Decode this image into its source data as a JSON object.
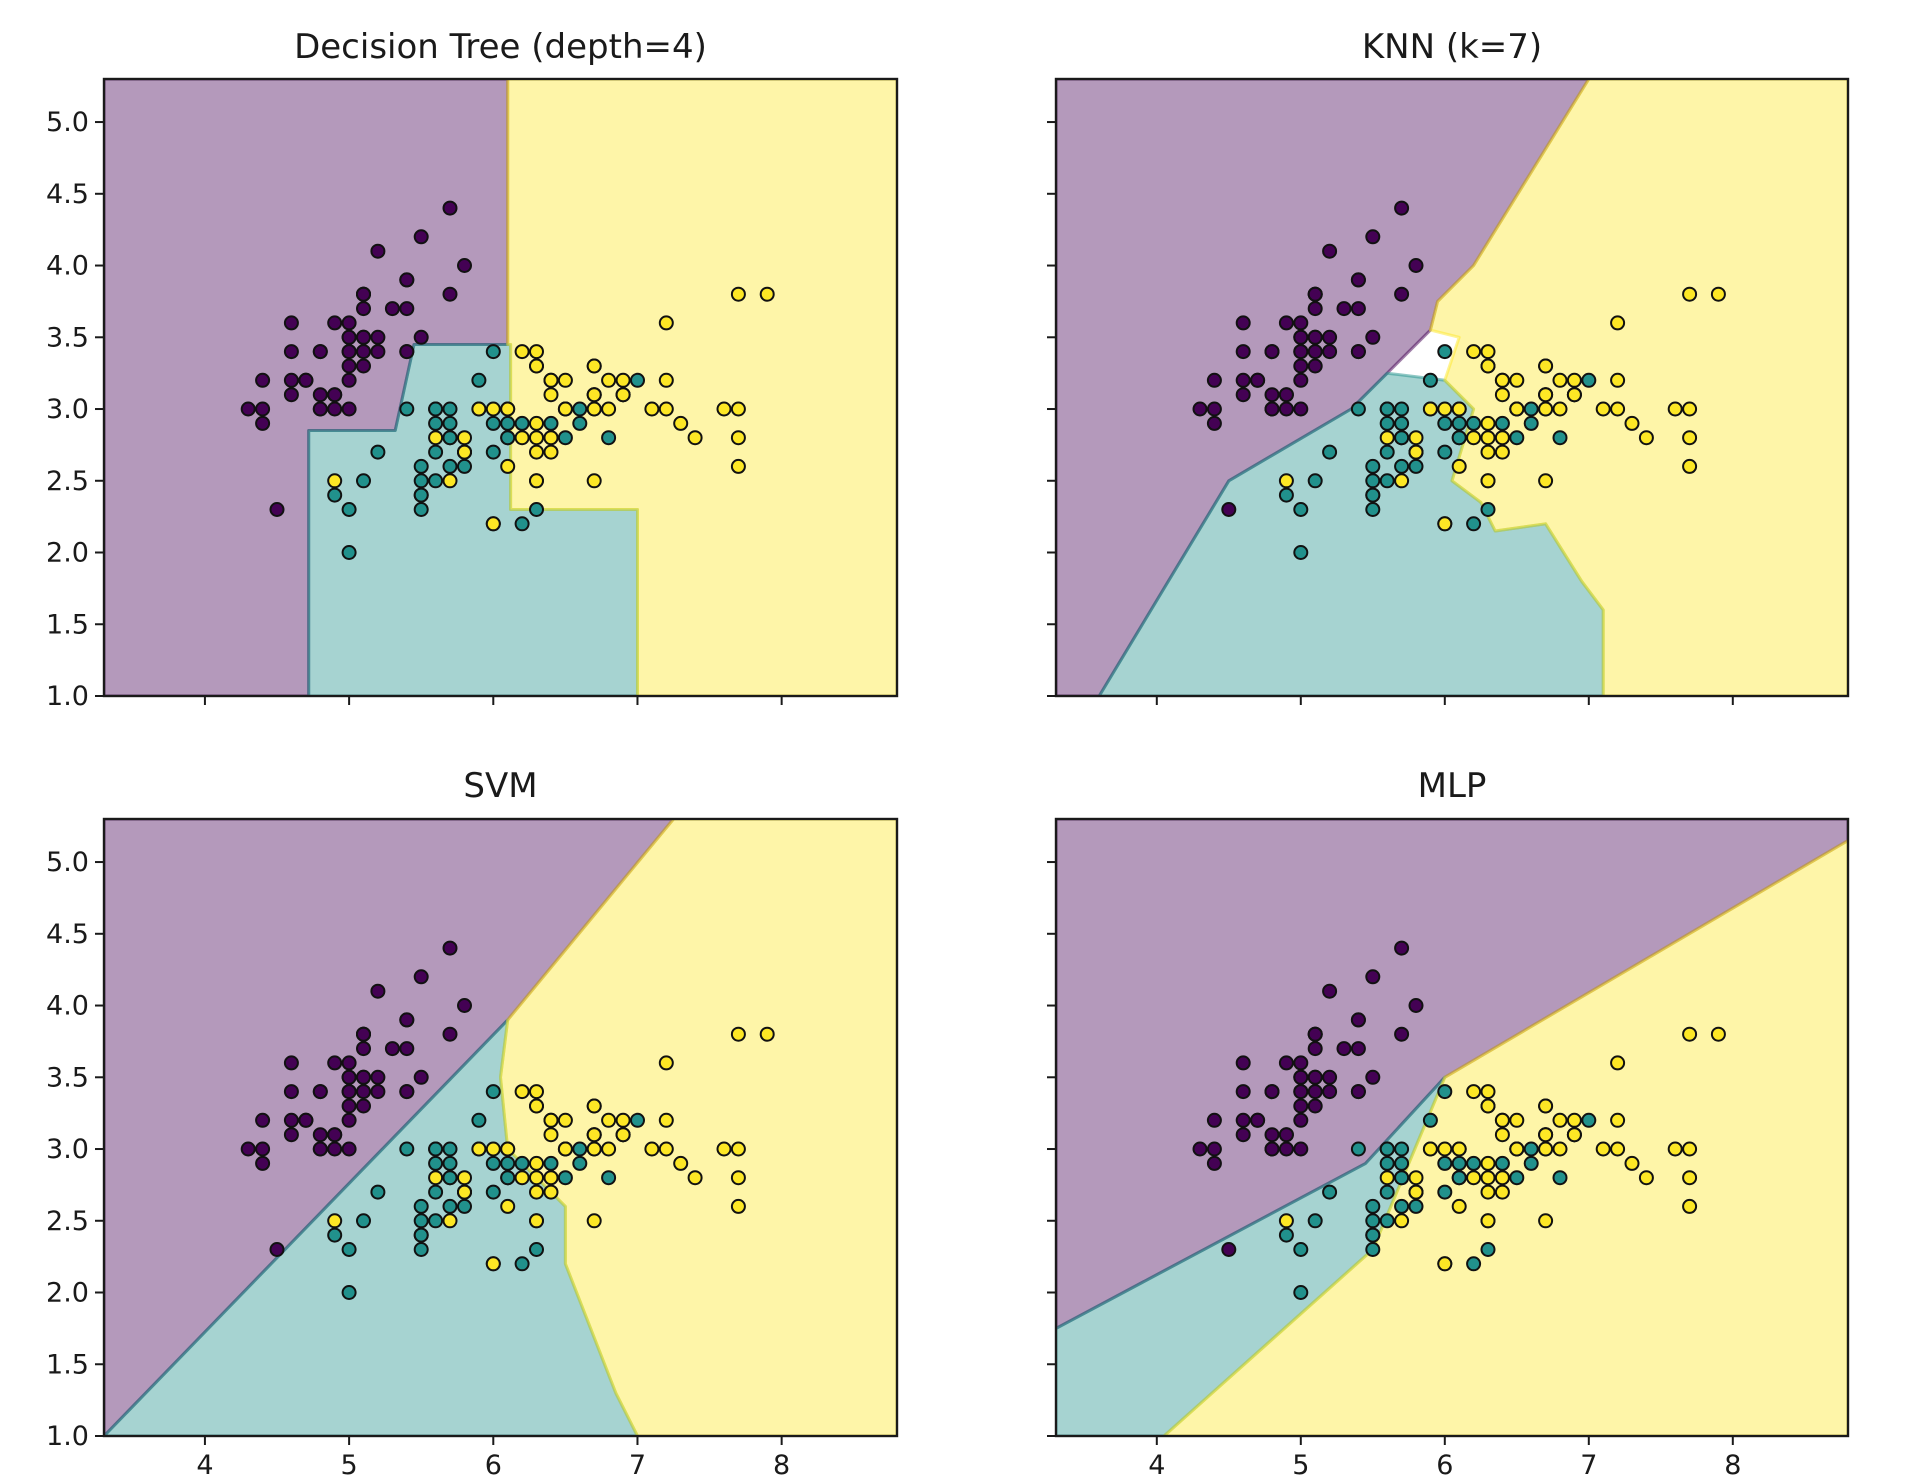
{
  "chart_data": {
    "type": "scatter",
    "layout": "2x2 grid of decision-boundary plots, shared axes",
    "class_colors": [
      "#440154",
      "#21918c",
      "#fde725"
    ],
    "region_opacity": 0.4,
    "xlim": [
      3.3,
      8.8
    ],
    "ylim": [
      1.0,
      5.3
    ],
    "xticks": [
      4,
      5,
      6,
      7,
      8
    ],
    "yticks": [
      1.0,
      1.5,
      2.0,
      2.5,
      3.0,
      3.5,
      4.0,
      4.5,
      5.0
    ],
    "xtick_labels": [
      "4",
      "5",
      "6",
      "7",
      "8"
    ],
    "ytick_labels": [
      "1.0",
      "1.5",
      "2.0",
      "2.5",
      "3.0",
      "3.5",
      "4.0",
      "4.5",
      "5.0"
    ],
    "panels": [
      {
        "title": "Decision Tree (depth=4)",
        "regions": [
          {
            "class": 0,
            "polygon": [
              [
                3.3,
                1.0
              ],
              [
                4.72,
                1.0
              ],
              [
                4.72,
                2.85
              ],
              [
                5.32,
                2.85
              ],
              [
                5.45,
                3.45
              ],
              [
                6.1,
                3.45
              ],
              [
                6.1,
                5.3
              ],
              [
                3.3,
                5.3
              ]
            ]
          },
          {
            "class": 1,
            "polygon": [
              [
                4.72,
                1.0
              ],
              [
                7.0,
                1.0
              ],
              [
                7.0,
                2.3
              ],
              [
                6.12,
                2.3
              ],
              [
                6.12,
                3.45
              ],
              [
                5.45,
                3.45
              ],
              [
                5.32,
                2.85
              ],
              [
                4.72,
                2.85
              ]
            ]
          },
          {
            "class": 2,
            "polygon": [
              [
                7.0,
                1.0
              ],
              [
                8.8,
                1.0
              ],
              [
                8.8,
                5.3
              ],
              [
                6.1,
                5.3
              ],
              [
                6.1,
                3.45
              ],
              [
                6.12,
                3.45
              ],
              [
                6.12,
                2.3
              ],
              [
                7.0,
                2.3
              ]
            ]
          }
        ]
      },
      {
        "title": "KNN (k=7)",
        "regions": [
          {
            "class": 0,
            "polygon": [
              [
                3.3,
                1.0
              ],
              [
                3.6,
                1.0
              ],
              [
                4.5,
                2.5
              ],
              [
                5.35,
                3.0
              ],
              [
                5.6,
                3.25
              ],
              [
                5.9,
                3.55
              ],
              [
                5.95,
                3.75
              ],
              [
                6.2,
                4.0
              ],
              [
                7.0,
                5.3
              ],
              [
                3.3,
                5.3
              ]
            ]
          },
          {
            "class": 1,
            "polygon": [
              [
                3.6,
                1.0
              ],
              [
                7.1,
                1.0
              ],
              [
                7.1,
                1.6
              ],
              [
                6.95,
                1.8
              ],
              [
                6.7,
                2.2
              ],
              [
                6.35,
                2.15
              ],
              [
                6.25,
                2.35
              ],
              [
                6.05,
                2.5
              ],
              [
                6.2,
                3.0
              ],
              [
                6.0,
                3.2
              ],
              [
                5.6,
                3.25
              ],
              [
                5.35,
                3.0
              ],
              [
                4.5,
                2.5
              ]
            ]
          },
          {
            "class": 2,
            "polygon": [
              [
                7.1,
                1.0
              ],
              [
                8.8,
                1.0
              ],
              [
                8.8,
                5.3
              ],
              [
                7.0,
                5.3
              ],
              [
                6.2,
                4.0
              ],
              [
                5.95,
                3.75
              ],
              [
                5.9,
                3.55
              ],
              [
                6.1,
                3.5
              ],
              [
                6.0,
                3.2
              ],
              [
                6.2,
                3.0
              ],
              [
                6.05,
                2.5
              ],
              [
                6.25,
                2.35
              ],
              [
                6.35,
                2.15
              ],
              [
                6.7,
                2.2
              ],
              [
                6.95,
                1.8
              ],
              [
                7.1,
                1.6
              ]
            ]
          }
        ]
      },
      {
        "title": "SVM",
        "regions": [
          {
            "class": 0,
            "polygon": [
              [
                3.3,
                1.0
              ],
              [
                6.1,
                3.9
              ],
              [
                7.25,
                5.3
              ],
              [
                3.3,
                5.3
              ]
            ]
          },
          {
            "class": 1,
            "polygon": [
              [
                3.3,
                1.0
              ],
              [
                7.0,
                1.0
              ],
              [
                6.85,
                1.3
              ],
              [
                6.5,
                2.2
              ],
              [
                6.5,
                2.6
              ],
              [
                6.1,
                3.0
              ],
              [
                6.05,
                3.5
              ],
              [
                6.1,
                3.9
              ]
            ]
          },
          {
            "class": 2,
            "polygon": [
              [
                7.0,
                1.0
              ],
              [
                8.8,
                1.0
              ],
              [
                8.8,
                5.3
              ],
              [
                7.25,
                5.3
              ],
              [
                6.1,
                3.9
              ],
              [
                6.05,
                3.5
              ],
              [
                6.1,
                3.0
              ],
              [
                6.5,
                2.6
              ],
              [
                6.5,
                2.2
              ],
              [
                6.85,
                1.3
              ]
            ]
          }
        ]
      },
      {
        "title": "MLP",
        "regions": [
          {
            "class": 0,
            "polygon": [
              [
                3.3,
                1.75
              ],
              [
                5.45,
                2.9
              ],
              [
                6.0,
                3.5
              ],
              [
                8.8,
                5.15
              ],
              [
                8.8,
                5.3
              ],
              [
                3.3,
                5.3
              ]
            ]
          },
          {
            "class": 1,
            "polygon": [
              [
                3.3,
                1.0
              ],
              [
                4.05,
                1.0
              ],
              [
                5.5,
                2.3
              ],
              [
                6.0,
                3.5
              ],
              [
                5.45,
                2.9
              ],
              [
                3.3,
                1.75
              ]
            ]
          },
          {
            "class": 2,
            "polygon": [
              [
                4.05,
                1.0
              ],
              [
                8.8,
                1.0
              ],
              [
                8.8,
                5.15
              ],
              [
                6.0,
                3.5
              ],
              [
                5.5,
                2.3
              ]
            ]
          }
        ]
      }
    ],
    "points": [
      [
        5.1,
        3.5,
        0
      ],
      [
        4.9,
        3.0,
        0
      ],
      [
        4.7,
        3.2,
        0
      ],
      [
        4.6,
        3.1,
        0
      ],
      [
        5.0,
        3.6,
        0
      ],
      [
        5.4,
        3.9,
        0
      ],
      [
        4.6,
        3.4,
        0
      ],
      [
        5.0,
        3.4,
        0
      ],
      [
        4.4,
        2.9,
        0
      ],
      [
        4.9,
        3.1,
        0
      ],
      [
        5.4,
        3.7,
        0
      ],
      [
        4.8,
        3.4,
        0
      ],
      [
        4.8,
        3.0,
        0
      ],
      [
        4.3,
        3.0,
        0
      ],
      [
        5.8,
        4.0,
        0
      ],
      [
        5.7,
        4.4,
        0
      ],
      [
        5.4,
        3.9,
        0
      ],
      [
        5.1,
        3.5,
        0
      ],
      [
        5.7,
        3.8,
        0
      ],
      [
        5.1,
        3.8,
        0
      ],
      [
        5.4,
        3.4,
        0
      ],
      [
        5.1,
        3.7,
        0
      ],
      [
        4.6,
        3.6,
        0
      ],
      [
        5.1,
        3.3,
        0
      ],
      [
        4.8,
        3.4,
        0
      ],
      [
        5.0,
        3.0,
        0
      ],
      [
        5.0,
        3.4,
        0
      ],
      [
        5.2,
        3.5,
        0
      ],
      [
        5.2,
        3.4,
        0
      ],
      [
        4.7,
        3.2,
        0
      ],
      [
        4.8,
        3.1,
        0
      ],
      [
        5.4,
        3.4,
        0
      ],
      [
        5.2,
        4.1,
        0
      ],
      [
        5.5,
        4.2,
        0
      ],
      [
        4.9,
        3.1,
        0
      ],
      [
        5.0,
        3.2,
        0
      ],
      [
        5.5,
        3.5,
        0
      ],
      [
        4.9,
        3.6,
        0
      ],
      [
        4.4,
        3.0,
        0
      ],
      [
        5.1,
        3.4,
        0
      ],
      [
        5.0,
        3.5,
        0
      ],
      [
        4.5,
        2.3,
        0
      ],
      [
        4.4,
        3.2,
        0
      ],
      [
        5.0,
        3.5,
        0
      ],
      [
        5.1,
        3.8,
        0
      ],
      [
        4.8,
        3.0,
        0
      ],
      [
        5.1,
        3.8,
        0
      ],
      [
        4.6,
        3.2,
        0
      ],
      [
        5.3,
        3.7,
        0
      ],
      [
        5.0,
        3.3,
        0
      ],
      [
        7.0,
        3.2,
        1
      ],
      [
        6.4,
        3.2,
        1
      ],
      [
        6.9,
        3.1,
        1
      ],
      [
        5.5,
        2.3,
        1
      ],
      [
        6.5,
        2.8,
        1
      ],
      [
        5.7,
        2.8,
        1
      ],
      [
        6.3,
        3.3,
        1
      ],
      [
        4.9,
        2.4,
        1
      ],
      [
        6.6,
        2.9,
        1
      ],
      [
        5.2,
        2.7,
        1
      ],
      [
        5.0,
        2.0,
        1
      ],
      [
        5.9,
        3.0,
        1
      ],
      [
        6.0,
        2.2,
        1
      ],
      [
        6.1,
        2.9,
        1
      ],
      [
        5.6,
        2.9,
        1
      ],
      [
        6.7,
        3.1,
        1
      ],
      [
        5.6,
        3.0,
        1
      ],
      [
        5.8,
        2.7,
        1
      ],
      [
        6.2,
        2.2,
        1
      ],
      [
        5.6,
        2.5,
        1
      ],
      [
        5.9,
        3.2,
        1
      ],
      [
        6.1,
        2.8,
        1
      ],
      [
        6.3,
        2.5,
        1
      ],
      [
        6.1,
        2.8,
        1
      ],
      [
        6.4,
        2.9,
        1
      ],
      [
        6.6,
        3.0,
        1
      ],
      [
        6.8,
        2.8,
        1
      ],
      [
        6.7,
        3.0,
        1
      ],
      [
        6.0,
        2.9,
        1
      ],
      [
        5.7,
        2.6,
        1
      ],
      [
        5.5,
        2.4,
        1
      ],
      [
        5.5,
        2.4,
        1
      ],
      [
        5.8,
        2.7,
        1
      ],
      [
        6.0,
        2.7,
        1
      ],
      [
        5.4,
        3.0,
        1
      ],
      [
        6.0,
        3.4,
        1
      ],
      [
        6.7,
        3.1,
        1
      ],
      [
        6.3,
        2.3,
        1
      ],
      [
        5.6,
        3.0,
        1
      ],
      [
        5.5,
        2.5,
        1
      ],
      [
        5.5,
        2.6,
        1
      ],
      [
        6.1,
        3.0,
        1
      ],
      [
        5.8,
        2.6,
        1
      ],
      [
        5.0,
        2.3,
        1
      ],
      [
        5.6,
        2.7,
        1
      ],
      [
        5.7,
        3.0,
        1
      ],
      [
        5.7,
        2.9,
        1
      ],
      [
        6.2,
        2.9,
        1
      ],
      [
        5.1,
        2.5,
        1
      ],
      [
        5.7,
        2.8,
        1
      ],
      [
        6.3,
        3.3,
        2
      ],
      [
        5.8,
        2.7,
        2
      ],
      [
        7.1,
        3.0,
        2
      ],
      [
        6.3,
        2.9,
        2
      ],
      [
        6.5,
        3.0,
        2
      ],
      [
        7.6,
        3.0,
        2
      ],
      [
        4.9,
        2.5,
        2
      ],
      [
        7.3,
        2.9,
        2
      ],
      [
        6.7,
        2.5,
        2
      ],
      [
        7.2,
        3.6,
        2
      ],
      [
        6.5,
        3.2,
        2
      ],
      [
        6.4,
        2.7,
        2
      ],
      [
        6.8,
        3.0,
        2
      ],
      [
        5.7,
        2.5,
        2
      ],
      [
        5.8,
        2.8,
        2
      ],
      [
        6.4,
        3.2,
        2
      ],
      [
        6.5,
        3.0,
        2
      ],
      [
        7.7,
        3.8,
        2
      ],
      [
        7.7,
        2.6,
        2
      ],
      [
        6.0,
        2.2,
        2
      ],
      [
        6.9,
        3.2,
        2
      ],
      [
        5.6,
        2.8,
        2
      ],
      [
        7.7,
        2.8,
        2
      ],
      [
        6.3,
        2.7,
        2
      ],
      [
        6.7,
        3.3,
        2
      ],
      [
        7.2,
        3.2,
        2
      ],
      [
        6.2,
        2.8,
        2
      ],
      [
        6.1,
        3.0,
        2
      ],
      [
        6.4,
        2.8,
        2
      ],
      [
        7.2,
        3.0,
        2
      ],
      [
        7.4,
        2.8,
        2
      ],
      [
        7.9,
        3.8,
        2
      ],
      [
        6.4,
        2.8,
        2
      ],
      [
        6.3,
        2.8,
        2
      ],
      [
        6.1,
        2.6,
        2
      ],
      [
        7.7,
        3.0,
        2
      ],
      [
        6.3,
        3.4,
        2
      ],
      [
        6.4,
        3.1,
        2
      ],
      [
        6.0,
        3.0,
        2
      ],
      [
        6.9,
        3.1,
        2
      ],
      [
        6.7,
        3.1,
        2
      ],
      [
        6.9,
        3.1,
        2
      ],
      [
        5.8,
        2.7,
        2
      ],
      [
        6.8,
        3.2,
        2
      ],
      [
        6.7,
        3.3,
        2
      ],
      [
        6.7,
        3.0,
        2
      ],
      [
        6.3,
        2.5,
        2
      ],
      [
        6.5,
        3.0,
        2
      ],
      [
        6.2,
        3.4,
        2
      ],
      [
        5.9,
        3.0,
        2
      ]
    ]
  }
}
